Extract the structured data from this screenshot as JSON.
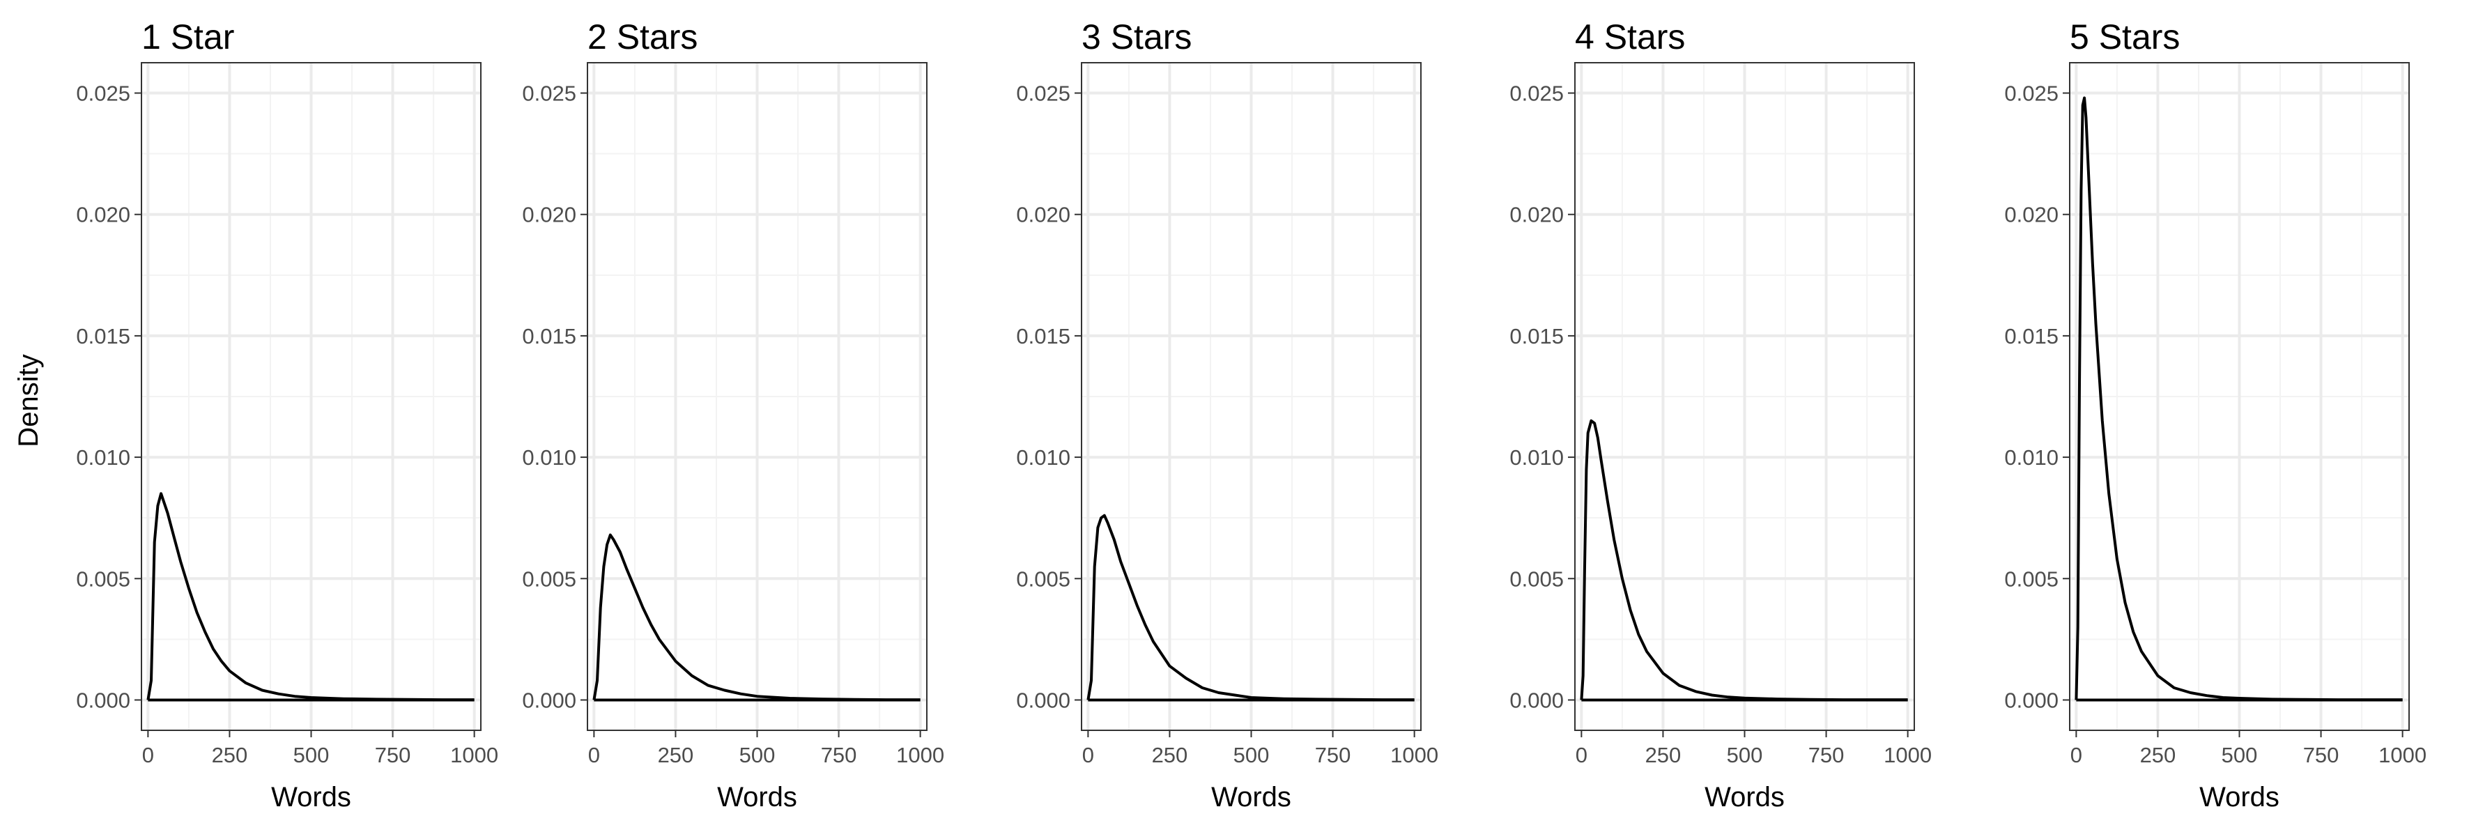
{
  "chart_data": {
    "type": "line",
    "layout": "facets",
    "xlabel": "Words",
    "ylabel": "Density",
    "xlim": [
      -20,
      1020
    ],
    "ylim": [
      -0.00125,
      0.02625
    ],
    "x_ticks": [
      0,
      250,
      500,
      750,
      1000
    ],
    "x_tick_labels": [
      "0",
      "250",
      "500",
      "750",
      "1000"
    ],
    "y_ticks": [
      0,
      0.005,
      0.01,
      0.015,
      0.02,
      0.025
    ],
    "y_tick_labels": [
      "0.000",
      "0.005",
      "0.010",
      "0.015",
      "0.020",
      "0.025"
    ],
    "grid": true,
    "line_color": "#000000",
    "panels": [
      {
        "title": "1 Star",
        "x": [
          0,
          10,
          20,
          30,
          40,
          50,
          60,
          80,
          100,
          125,
          150,
          175,
          200,
          225,
          250,
          300,
          350,
          400,
          450,
          500,
          600,
          700,
          800,
          900,
          1000
        ],
        "y": [
          0,
          0.0008,
          0.0065,
          0.008,
          0.0085,
          0.0081,
          0.0077,
          0.0067,
          0.0057,
          0.0046,
          0.0036,
          0.0028,
          0.0021,
          0.0016,
          0.0012,
          0.0007,
          0.0004,
          0.00025,
          0.00015,
          0.0001,
          5e-05,
          3e-05,
          2e-05,
          1e-05,
          1e-05
        ]
      },
      {
        "title": "2 Stars",
        "x": [
          0,
          10,
          20,
          30,
          40,
          50,
          60,
          80,
          100,
          125,
          150,
          175,
          200,
          250,
          300,
          350,
          400,
          450,
          500,
          600,
          700,
          800,
          900,
          1000
        ],
        "y": [
          0,
          0.0008,
          0.0038,
          0.0055,
          0.0064,
          0.0068,
          0.0066,
          0.0061,
          0.0054,
          0.0046,
          0.0038,
          0.0031,
          0.0025,
          0.0016,
          0.001,
          0.0006,
          0.0004,
          0.00025,
          0.00015,
          7e-05,
          4e-05,
          2e-05,
          1e-05,
          1e-05
        ]
      },
      {
        "title": "3 Stars",
        "x": [
          0,
          10,
          20,
          30,
          40,
          50,
          60,
          80,
          100,
          125,
          150,
          175,
          200,
          250,
          300,
          350,
          400,
          450,
          500,
          600,
          700,
          800,
          900,
          1000
        ],
        "y": [
          0,
          0.0008,
          0.0055,
          0.0071,
          0.0075,
          0.0076,
          0.0073,
          0.0066,
          0.0057,
          0.0048,
          0.0039,
          0.0031,
          0.0024,
          0.0014,
          0.0009,
          0.0005,
          0.0003,
          0.0002,
          0.0001,
          5e-05,
          3e-05,
          2e-05,
          1e-05,
          1e-05
        ]
      },
      {
        "title": "4 Stars",
        "x": [
          0,
          5,
          10,
          15,
          20,
          30,
          40,
          50,
          60,
          80,
          100,
          125,
          150,
          175,
          200,
          250,
          300,
          350,
          400,
          450,
          500,
          600,
          700,
          800,
          900,
          1000
        ],
        "y": [
          0,
          0.001,
          0.0055,
          0.0095,
          0.011,
          0.0115,
          0.0114,
          0.0108,
          0.0099,
          0.0082,
          0.0066,
          0.005,
          0.0037,
          0.0027,
          0.002,
          0.0011,
          0.0006,
          0.00035,
          0.0002,
          0.00012,
          8e-05,
          4e-05,
          2e-05,
          1e-05,
          1e-05,
          1e-05
        ]
      },
      {
        "title": "5 Stars",
        "x": [
          0,
          5,
          10,
          15,
          20,
          25,
          30,
          40,
          50,
          60,
          80,
          100,
          125,
          150,
          175,
          200,
          250,
          300,
          350,
          400,
          450,
          500,
          600,
          700,
          800,
          900,
          1000
        ],
        "y": [
          0,
          0.003,
          0.013,
          0.021,
          0.0245,
          0.0248,
          0.024,
          0.021,
          0.018,
          0.0155,
          0.0115,
          0.0085,
          0.0058,
          0.004,
          0.0028,
          0.002,
          0.001,
          0.0005,
          0.0003,
          0.00018,
          0.0001,
          7e-05,
          3e-05,
          2e-05,
          1e-05,
          1e-05,
          1e-05
        ]
      }
    ]
  }
}
